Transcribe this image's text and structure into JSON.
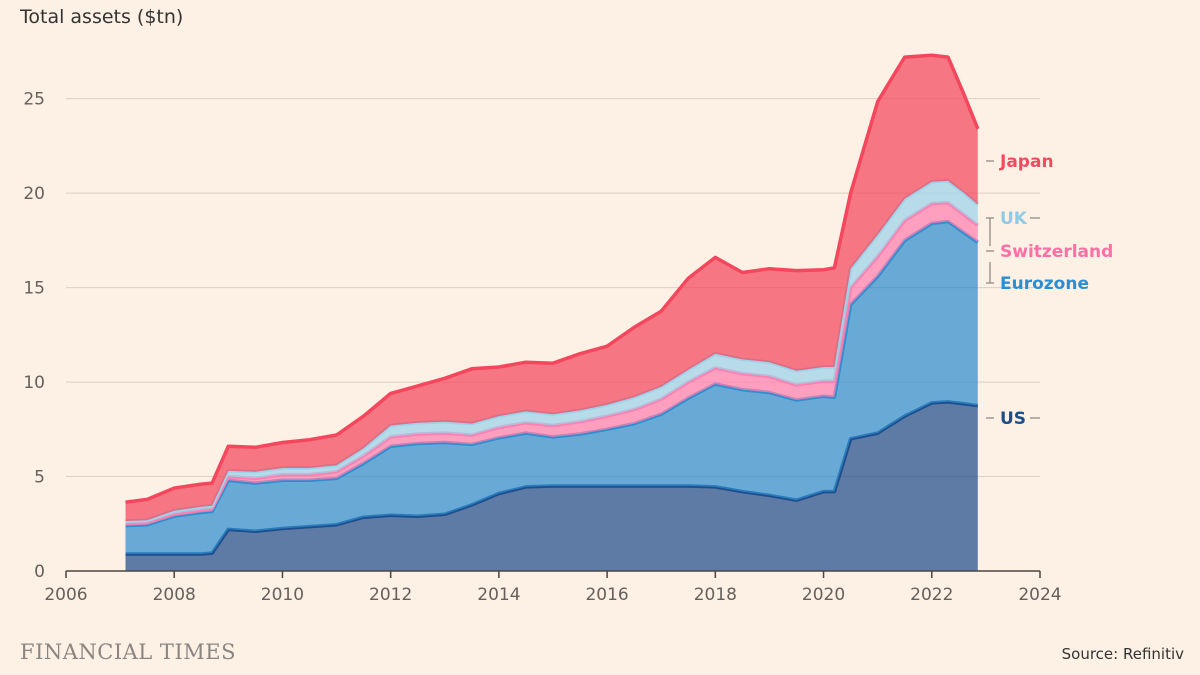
{
  "chart_data": {
    "type": "area",
    "title": "Total assets ($tn)",
    "xlim": [
      2006,
      2024
    ],
    "ylim": [
      0,
      28
    ],
    "x_ticks": [
      "2006",
      "2008",
      "2010",
      "2012",
      "2014",
      "2016",
      "2018",
      "2020",
      "2022",
      "2024"
    ],
    "y_ticks": [
      "0",
      "5",
      "10",
      "15",
      "20",
      "25"
    ],
    "stacked": true,
    "x": [
      2007.1,
      2007.5,
      2008.0,
      2008.5,
      2008.7,
      2009.0,
      2009.5,
      2010.0,
      2010.5,
      2011.0,
      2011.5,
      2012.0,
      2012.5,
      2013.0,
      2013.5,
      2014.0,
      2014.5,
      2015.0,
      2015.5,
      2016.0,
      2016.5,
      2017.0,
      2017.5,
      2018.0,
      2018.5,
      2019.0,
      2019.5,
      2020.0,
      2020.2,
      2020.5,
      2021.0,
      2021.5,
      2022.0,
      2022.3,
      2022.6,
      2022.85
    ],
    "series": [
      {
        "name": "US",
        "color": "#1f4e8c",
        "values": [
          0.9,
          0.9,
          0.9,
          0.9,
          0.95,
          2.2,
          2.1,
          2.25,
          2.35,
          2.45,
          2.85,
          2.95,
          2.9,
          3.0,
          3.5,
          4.1,
          4.45,
          4.5,
          4.5,
          4.5,
          4.5,
          4.5,
          4.5,
          4.45,
          4.2,
          4.0,
          3.75,
          4.2,
          4.2,
          7.0,
          7.3,
          8.2,
          8.9,
          8.95,
          8.85,
          8.75
        ]
      },
      {
        "name": "Eurozone",
        "color": "#2e8ecf",
        "values": [
          1.5,
          1.55,
          2.0,
          2.2,
          2.2,
          2.6,
          2.55,
          2.55,
          2.45,
          2.45,
          2.85,
          3.65,
          3.85,
          3.8,
          3.2,
          2.95,
          2.85,
          2.6,
          2.75,
          3.0,
          3.3,
          3.8,
          4.65,
          5.45,
          5.4,
          5.45,
          5.3,
          5.05,
          5.0,
          7.1,
          8.3,
          9.3,
          9.5,
          9.55,
          9.05,
          8.65
        ]
      },
      {
        "name": "Switzerland",
        "color": "#ff7fb0",
        "values": [
          0.12,
          0.12,
          0.14,
          0.15,
          0.15,
          0.2,
          0.25,
          0.3,
          0.3,
          0.35,
          0.4,
          0.5,
          0.5,
          0.5,
          0.5,
          0.55,
          0.55,
          0.6,
          0.65,
          0.7,
          0.75,
          0.8,
          0.85,
          0.85,
          0.85,
          0.85,
          0.8,
          0.8,
          0.85,
          0.9,
          1.05,
          1.05,
          1.05,
          1.0,
          0.95,
          0.9
        ]
      },
      {
        "name": "UK",
        "color": "#9dd3ea",
        "values": [
          0.12,
          0.12,
          0.15,
          0.15,
          0.15,
          0.3,
          0.35,
          0.35,
          0.35,
          0.35,
          0.4,
          0.6,
          0.6,
          0.6,
          0.6,
          0.6,
          0.6,
          0.6,
          0.6,
          0.6,
          0.65,
          0.65,
          0.65,
          0.75,
          0.75,
          0.75,
          0.75,
          0.75,
          0.75,
          1.0,
          1.15,
          1.15,
          1.15,
          1.15,
          1.15,
          1.1
        ]
      },
      {
        "name": "Japan",
        "color": "#f4475d",
        "values": [
          1.0,
          1.1,
          1.2,
          1.2,
          1.2,
          1.3,
          1.3,
          1.35,
          1.5,
          1.6,
          1.7,
          1.7,
          1.95,
          2.3,
          2.9,
          2.6,
          2.6,
          2.7,
          3.0,
          3.1,
          3.7,
          4.0,
          4.85,
          5.1,
          4.6,
          4.95,
          5.3,
          5.15,
          5.25,
          4.0,
          7.05,
          7.5,
          6.7,
          6.55,
          5.2,
          4.0
        ]
      }
    ],
    "label_values": [
      {
        "name": "Japan",
        "y": 23.2
      },
      {
        "name": "UK",
        "y": 20.0
      },
      {
        "name": "Switzerland",
        "y": 18.1
      },
      {
        "name": "Eurozone",
        "y": 16.4
      },
      {
        "name": "US",
        "y": 8.8
      }
    ],
    "grid": true
  },
  "footer": {
    "brand": "FINANCIAL TIMES",
    "source": "Source: Refinitiv"
  }
}
